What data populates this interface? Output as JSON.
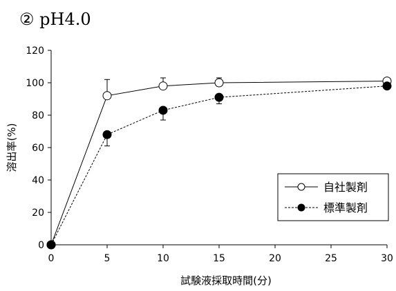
{
  "chart_data": {
    "type": "line",
    "title": "② pH4.0",
    "xlabel": "試験液採取時間(分)",
    "ylabel": "溶出率(%)",
    "xlim": [
      0,
      30
    ],
    "ylim": [
      0,
      120
    ],
    "xticks": [
      0,
      5,
      10,
      15,
      20,
      25,
      30
    ],
    "yticks": [
      0,
      20,
      40,
      60,
      80,
      100,
      120
    ],
    "grid": false,
    "legend_position": "lower-right",
    "series": [
      {
        "name": "自社製剤",
        "marker": "open-circle",
        "line_style": "solid",
        "x": [
          0,
          5,
          10,
          15,
          30
        ],
        "y": [
          0,
          92,
          98,
          100,
          101
        ],
        "err_up": [
          0,
          10,
          5,
          3,
          0
        ],
        "err_down": [
          0,
          0,
          0,
          0,
          0
        ]
      },
      {
        "name": "標準製剤",
        "marker": "filled-circle",
        "line_style": "dashed",
        "x": [
          0,
          5,
          10,
          15,
          30
        ],
        "y": [
          0,
          68,
          83,
          91,
          98
        ],
        "err_up": [
          0,
          0,
          0,
          0,
          0
        ],
        "err_down": [
          0,
          7,
          6,
          4,
          0
        ]
      }
    ]
  }
}
